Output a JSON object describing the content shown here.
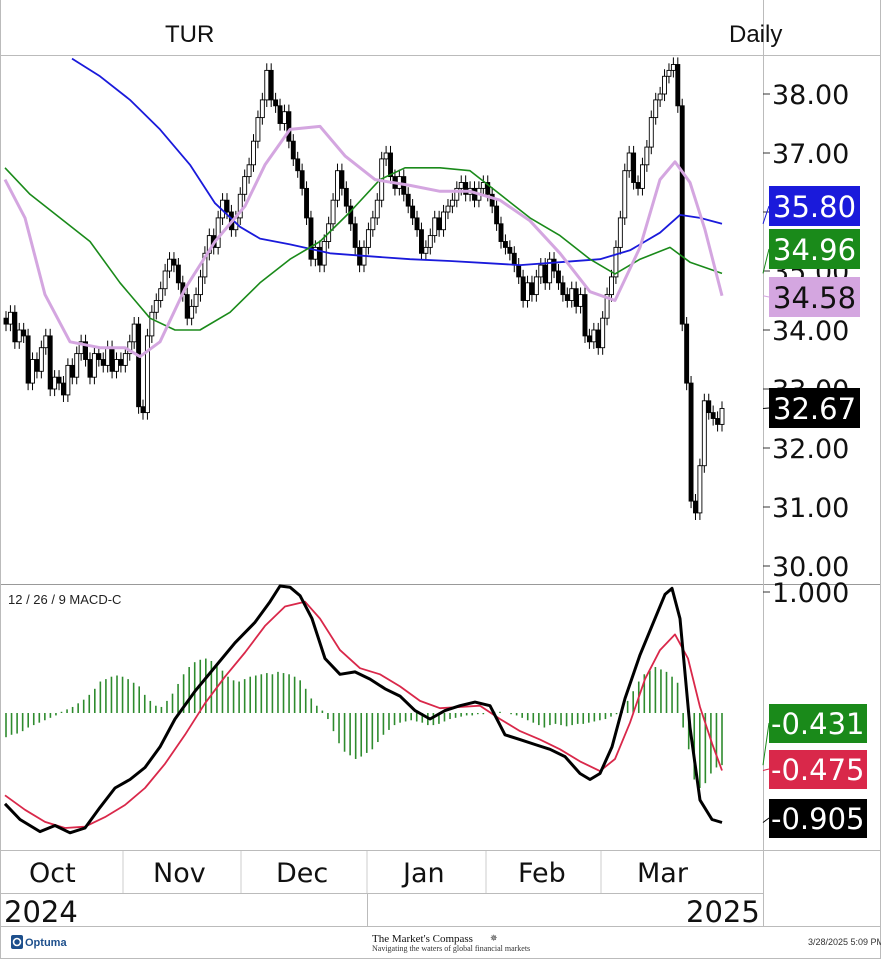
{
  "header": {
    "symbol": "TUR",
    "interval": "Daily"
  },
  "footer": {
    "vendor": "Optuma",
    "brand": "The Market's Compass",
    "tagline": "Navigating the waters of global financial markets",
    "timestamp": "3/28/2025 5:09 PM"
  },
  "colors": {
    "sma_blue": "#1a1adb",
    "sma_green": "#1a8a1a",
    "sma_pink": "#d4a6e0",
    "macd_line": "#000000",
    "signal_line": "#d9284a",
    "histogram": "#2e8b2e"
  },
  "chart_data": [
    {
      "type": "candlestick",
      "ylim": [
        29.7,
        38.75
      ],
      "y_ticks": [
        "38.00",
        "37.00",
        "36.00",
        "35.00",
        "34.00",
        "33.00",
        "32.00",
        "31.00",
        "30.00"
      ],
      "x_months": [
        "Oct",
        "Nov",
        "Dec",
        "Jan",
        "Feb",
        "Mar"
      ],
      "x_years": [
        "2024",
        "2025"
      ],
      "last_values": [
        {
          "name": "blue",
          "label": "35.80",
          "value": 35.8,
          "color": "#1a1adb"
        },
        {
          "name": "green",
          "label": "34.96",
          "value": 34.96,
          "color": "#1a8a1a"
        },
        {
          "name": "pink",
          "label": "34.58",
          "value": 34.58,
          "color": "#d4a6e0"
        },
        {
          "name": "close",
          "label": "32.67",
          "value": 32.67,
          "color": "#000000"
        }
      ],
      "closes": [
        34.1,
        34.3,
        33.8,
        34.0,
        33.9,
        33.1,
        33.5,
        33.3,
        33.7,
        33.9,
        33.0,
        33.2,
        33.1,
        32.9,
        33.4,
        33.2,
        33.6,
        33.8,
        33.5,
        33.2,
        33.6,
        33.5,
        33.4,
        33.7,
        33.3,
        33.5,
        33.4,
        33.6,
        33.8,
        34.1,
        32.7,
        32.6,
        33.9,
        34.3,
        34.5,
        34.7,
        35.0,
        35.2,
        35.1,
        34.8,
        34.6,
        34.2,
        34.4,
        34.6,
        34.9,
        35.3,
        35.6,
        35.4,
        35.9,
        36.2,
        36.0,
        35.7,
        35.9,
        36.3,
        36.6,
        36.8,
        37.2,
        37.6,
        37.9,
        38.4,
        37.9,
        37.8,
        37.5,
        37.7,
        37.2,
        36.9,
        36.7,
        36.4,
        35.9,
        35.2,
        35.4,
        35.1,
        35.5,
        35.8,
        36.2,
        36.7,
        36.4,
        36.1,
        35.8,
        35.4,
        35.1,
        35.4,
        35.7,
        35.9,
        36.2,
        36.9,
        37.0,
        36.6,
        36.4,
        36.6,
        36.3,
        36.1,
        35.9,
        35.7,
        35.3,
        35.4,
        35.6,
        35.9,
        35.7,
        36.0,
        36.1,
        36.2,
        36.4,
        36.5,
        36.3,
        36.4,
        36.2,
        36.4,
        36.5,
        36.3,
        36.1,
        35.8,
        35.5,
        35.4,
        35.3,
        35.1,
        34.9,
        34.5,
        34.8,
        34.6,
        34.9,
        35.1,
        34.8,
        35.2,
        35.0,
        34.8,
        34.6,
        34.5,
        34.7,
        34.4,
        34.6,
        33.9,
        33.8,
        34.0,
        33.7,
        34.2,
        34.6,
        34.9,
        35.4,
        35.9,
        36.7,
        37.0,
        36.5,
        36.4,
        36.8,
        37.1,
        37.6,
        37.9,
        38.0,
        38.3,
        38.4,
        38.5,
        37.8,
        34.1,
        33.1,
        31.1,
        30.9,
        31.7,
        32.8,
        32.6,
        32.5,
        32.4,
        32.67
      ],
      "sma_blue": [
        {
          "x": 72,
          "y": 38.6
        },
        {
          "x": 100,
          "y": 38.3
        },
        {
          "x": 130,
          "y": 37.9
        },
        {
          "x": 160,
          "y": 37.4
        },
        {
          "x": 190,
          "y": 36.8
        },
        {
          "x": 215,
          "y": 36.15
        },
        {
          "x": 240,
          "y": 35.75
        },
        {
          "x": 260,
          "y": 35.55
        },
        {
          "x": 290,
          "y": 35.45
        },
        {
          "x": 330,
          "y": 35.3
        },
        {
          "x": 370,
          "y": 35.25
        },
        {
          "x": 410,
          "y": 35.2
        },
        {
          "x": 450,
          "y": 35.17
        },
        {
          "x": 490,
          "y": 35.13
        },
        {
          "x": 520,
          "y": 35.1
        },
        {
          "x": 560,
          "y": 35.15
        },
        {
          "x": 600,
          "y": 35.2
        },
        {
          "x": 630,
          "y": 35.35
        },
        {
          "x": 660,
          "y": 35.65
        },
        {
          "x": 680,
          "y": 35.95
        },
        {
          "x": 700,
          "y": 35.9
        },
        {
          "x": 722,
          "y": 35.8
        }
      ],
      "sma_green": [
        {
          "x": 5,
          "y": 36.75
        },
        {
          "x": 30,
          "y": 36.3
        },
        {
          "x": 60,
          "y": 35.9
        },
        {
          "x": 90,
          "y": 35.5
        },
        {
          "x": 120,
          "y": 34.8
        },
        {
          "x": 150,
          "y": 34.2
        },
        {
          "x": 175,
          "y": 34.0
        },
        {
          "x": 200,
          "y": 34.0
        },
        {
          "x": 230,
          "y": 34.3
        },
        {
          "x": 260,
          "y": 34.8
        },
        {
          "x": 290,
          "y": 35.2
        },
        {
          "x": 320,
          "y": 35.5
        },
        {
          "x": 350,
          "y": 36.0
        },
        {
          "x": 380,
          "y": 36.55
        },
        {
          "x": 405,
          "y": 36.75
        },
        {
          "x": 440,
          "y": 36.75
        },
        {
          "x": 470,
          "y": 36.7
        },
        {
          "x": 500,
          "y": 36.3
        },
        {
          "x": 530,
          "y": 35.9
        },
        {
          "x": 560,
          "y": 35.6
        },
        {
          "x": 590,
          "y": 35.2
        },
        {
          "x": 615,
          "y": 34.95
        },
        {
          "x": 640,
          "y": 35.2
        },
        {
          "x": 670,
          "y": 35.4
        },
        {
          "x": 690,
          "y": 35.15
        },
        {
          "x": 722,
          "y": 34.96
        }
      ],
      "sma_pink": [
        {
          "x": 5,
          "y": 36.55
        },
        {
          "x": 25,
          "y": 35.9
        },
        {
          "x": 45,
          "y": 34.6
        },
        {
          "x": 70,
          "y": 33.8
        },
        {
          "x": 100,
          "y": 33.7
        },
        {
          "x": 125,
          "y": 33.7
        },
        {
          "x": 140,
          "y": 33.55
        },
        {
          "x": 160,
          "y": 33.8
        },
        {
          "x": 185,
          "y": 34.7
        },
        {
          "x": 215,
          "y": 35.5
        },
        {
          "x": 245,
          "y": 36.1
        },
        {
          "x": 265,
          "y": 36.8
        },
        {
          "x": 290,
          "y": 37.4
        },
        {
          "x": 320,
          "y": 37.45
        },
        {
          "x": 345,
          "y": 36.95
        },
        {
          "x": 375,
          "y": 36.55
        },
        {
          "x": 410,
          "y": 36.45
        },
        {
          "x": 440,
          "y": 36.35
        },
        {
          "x": 470,
          "y": 36.35
        },
        {
          "x": 500,
          "y": 36.2
        },
        {
          "x": 530,
          "y": 35.85
        },
        {
          "x": 560,
          "y": 35.3
        },
        {
          "x": 590,
          "y": 34.65
        },
        {
          "x": 615,
          "y": 34.5
        },
        {
          "x": 640,
          "y": 35.4
        },
        {
          "x": 660,
          "y": 36.55
        },
        {
          "x": 675,
          "y": 36.85
        },
        {
          "x": 690,
          "y": 36.5
        },
        {
          "x": 705,
          "y": 35.7
        },
        {
          "x": 722,
          "y": 34.58
        }
      ]
    },
    {
      "type": "line",
      "title": "12 / 26 / 9 MACD-C",
      "ylim": [
        -1.05,
        1.1
      ],
      "y_ticks": [
        "1.000"
      ],
      "last_values": [
        {
          "name": "histogram",
          "label": "-0.431",
          "value": -0.431,
          "color": "#1a8a1a"
        },
        {
          "name": "signal",
          "label": "-0.475",
          "value": -0.475,
          "color": "#d9284a"
        },
        {
          "name": "macd",
          "label": "-0.905",
          "value": -0.905,
          "color": "#000000"
        }
      ],
      "macd": [
        {
          "x": 5,
          "y": -0.75
        },
        {
          "x": 20,
          "y": -0.88
        },
        {
          "x": 40,
          "y": -0.98
        },
        {
          "x": 55,
          "y": -0.93
        },
        {
          "x": 70,
          "y": -0.99
        },
        {
          "x": 85,
          "y": -0.95
        },
        {
          "x": 100,
          "y": -0.78
        },
        {
          "x": 115,
          "y": -0.62
        },
        {
          "x": 130,
          "y": -0.55
        },
        {
          "x": 145,
          "y": -0.45
        },
        {
          "x": 160,
          "y": -0.28
        },
        {
          "x": 175,
          "y": -0.05
        },
        {
          "x": 195,
          "y": 0.18
        },
        {
          "x": 215,
          "y": 0.38
        },
        {
          "x": 235,
          "y": 0.58
        },
        {
          "x": 255,
          "y": 0.75
        },
        {
          "x": 270,
          "y": 0.92
        },
        {
          "x": 280,
          "y": 1.05
        },
        {
          "x": 290,
          "y": 1.04
        },
        {
          "x": 300,
          "y": 0.97
        },
        {
          "x": 312,
          "y": 0.78
        },
        {
          "x": 325,
          "y": 0.45
        },
        {
          "x": 340,
          "y": 0.32
        },
        {
          "x": 355,
          "y": 0.34
        },
        {
          "x": 370,
          "y": 0.28
        },
        {
          "x": 385,
          "y": 0.2
        },
        {
          "x": 400,
          "y": 0.14
        },
        {
          "x": 415,
          "y": 0.02
        },
        {
          "x": 430,
          "y": -0.05
        },
        {
          "x": 445,
          "y": 0.02
        },
        {
          "x": 460,
          "y": 0.06
        },
        {
          "x": 475,
          "y": 0.09
        },
        {
          "x": 490,
          "y": 0.06
        },
        {
          "x": 505,
          "y": -0.18
        },
        {
          "x": 520,
          "y": -0.22
        },
        {
          "x": 535,
          "y": -0.26
        },
        {
          "x": 550,
          "y": -0.3
        },
        {
          "x": 565,
          "y": -0.36
        },
        {
          "x": 580,
          "y": -0.5
        },
        {
          "x": 590,
          "y": -0.55
        },
        {
          "x": 600,
          "y": -0.5
        },
        {
          "x": 612,
          "y": -0.28
        },
        {
          "x": 625,
          "y": 0.12
        },
        {
          "x": 640,
          "y": 0.48
        },
        {
          "x": 655,
          "y": 0.78
        },
        {
          "x": 665,
          "y": 0.98
        },
        {
          "x": 672,
          "y": 1.03
        },
        {
          "x": 680,
          "y": 0.78
        },
        {
          "x": 690,
          "y": -0.12
        },
        {
          "x": 700,
          "y": -0.72
        },
        {
          "x": 712,
          "y": -0.88
        },
        {
          "x": 722,
          "y": -0.905
        }
      ],
      "signal": [
        {
          "x": 5,
          "y": -0.68
        },
        {
          "x": 25,
          "y": -0.8
        },
        {
          "x": 45,
          "y": -0.9
        },
        {
          "x": 65,
          "y": -0.95
        },
        {
          "x": 85,
          "y": -0.94
        },
        {
          "x": 105,
          "y": -0.86
        },
        {
          "x": 125,
          "y": -0.76
        },
        {
          "x": 145,
          "y": -0.62
        },
        {
          "x": 165,
          "y": -0.42
        },
        {
          "x": 185,
          "y": -0.18
        },
        {
          "x": 205,
          "y": 0.08
        },
        {
          "x": 225,
          "y": 0.3
        },
        {
          "x": 245,
          "y": 0.5
        },
        {
          "x": 265,
          "y": 0.72
        },
        {
          "x": 285,
          "y": 0.88
        },
        {
          "x": 305,
          "y": 0.92
        },
        {
          "x": 320,
          "y": 0.78
        },
        {
          "x": 340,
          "y": 0.52
        },
        {
          "x": 360,
          "y": 0.37
        },
        {
          "x": 380,
          "y": 0.32
        },
        {
          "x": 400,
          "y": 0.22
        },
        {
          "x": 420,
          "y": 0.1
        },
        {
          "x": 440,
          "y": 0.04
        },
        {
          "x": 460,
          "y": 0.05
        },
        {
          "x": 480,
          "y": 0.06
        },
        {
          "x": 500,
          "y": -0.05
        },
        {
          "x": 520,
          "y": -0.15
        },
        {
          "x": 540,
          "y": -0.22
        },
        {
          "x": 560,
          "y": -0.3
        },
        {
          "x": 580,
          "y": -0.4
        },
        {
          "x": 600,
          "y": -0.48
        },
        {
          "x": 615,
          "y": -0.38
        },
        {
          "x": 630,
          "y": -0.08
        },
        {
          "x": 645,
          "y": 0.28
        },
        {
          "x": 660,
          "y": 0.52
        },
        {
          "x": 675,
          "y": 0.65
        },
        {
          "x": 688,
          "y": 0.45
        },
        {
          "x": 700,
          "y": 0.05
        },
        {
          "x": 712,
          "y": -0.25
        },
        {
          "x": 722,
          "y": -0.475
        }
      ],
      "histogram": [
        -0.2,
        -0.18,
        -0.17,
        -0.15,
        -0.12,
        -0.1,
        -0.08,
        -0.06,
        -0.04,
        -0.02,
        0.01,
        0.03,
        0.05,
        0.08,
        0.11,
        0.15,
        0.2,
        0.26,
        0.28,
        0.3,
        0.31,
        0.3,
        0.28,
        0.25,
        0.22,
        0.15,
        0.1,
        0.06,
        0.05,
        0.1,
        0.16,
        0.24,
        0.32,
        0.38,
        0.42,
        0.44,
        0.45,
        0.43,
        0.4,
        0.35,
        0.3,
        0.27,
        0.26,
        0.28,
        0.3,
        0.31,
        0.32,
        0.33,
        0.32,
        0.34,
        0.33,
        0.32,
        0.3,
        0.27,
        0.2,
        0.12,
        0.06,
        0.02,
        -0.05,
        -0.15,
        -0.25,
        -0.32,
        -0.35,
        -0.38,
        -0.36,
        -0.33,
        -0.3,
        -0.24,
        -0.18,
        -0.14,
        -0.1,
        -0.08,
        -0.07,
        -0.06,
        -0.07,
        -0.08,
        -0.1,
        -0.1,
        -0.09,
        -0.07,
        -0.05,
        -0.04,
        -0.03,
        -0.02,
        -0.02,
        -0.01,
        -0.01,
        0.0,
        0.01,
        0.01,
        0.0,
        -0.01,
        -0.02,
        -0.04,
        -0.06,
        -0.08,
        -0.1,
        -0.12,
        -0.1,
        -0.09,
        -0.1,
        -0.11,
        -0.1,
        -0.09,
        -0.09,
        -0.08,
        -0.07,
        -0.06,
        -0.05,
        -0.03,
        -0.01,
        0.04,
        0.1,
        0.18,
        0.26,
        0.32,
        0.35,
        0.38,
        0.36,
        0.34,
        0.3,
        0.25,
        -0.12,
        -0.3,
        -0.55,
        -0.62,
        -0.58,
        -0.5,
        -0.45,
        -0.431
      ]
    }
  ]
}
